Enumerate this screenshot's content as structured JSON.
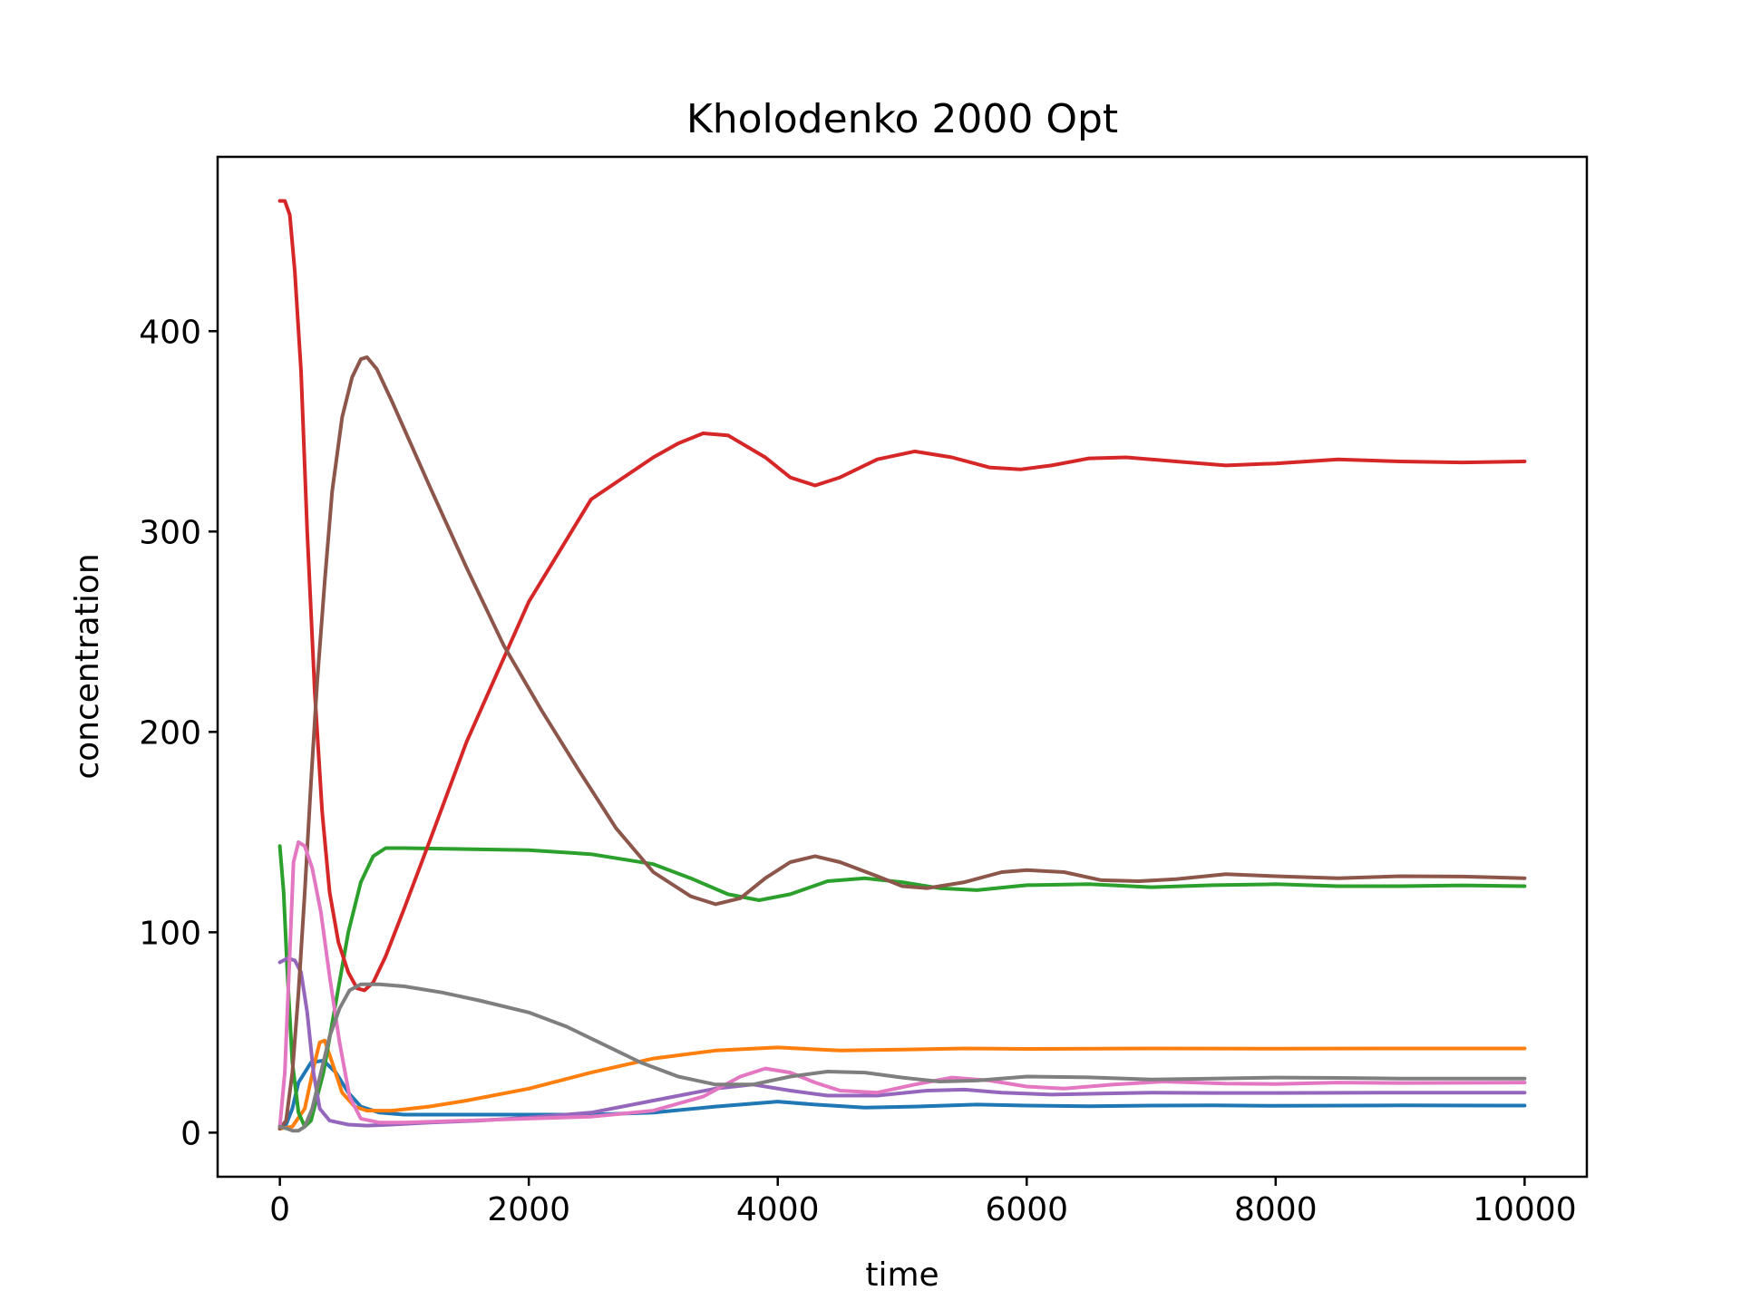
{
  "chart_data": {
    "type": "line",
    "title": "Kholodenko 2000 Opt",
    "xlabel": "time",
    "ylabel": "concentration",
    "xlim": [
      -500,
      10500
    ],
    "ylim": [
      -22,
      487
    ],
    "xticks": [
      0,
      2000,
      4000,
      6000,
      8000,
      10000
    ],
    "yticks": [
      0,
      100,
      200,
      300,
      400
    ],
    "grid": false,
    "legend": "none",
    "series": [
      {
        "color": "#1f77b4",
        "points": [
          [
            0,
            3
          ],
          [
            50,
            4
          ],
          [
            100,
            12
          ],
          [
            150,
            25
          ],
          [
            250,
            35
          ],
          [
            350,
            36
          ],
          [
            450,
            30
          ],
          [
            550,
            20
          ],
          [
            650,
            13
          ],
          [
            800,
            10
          ],
          [
            1000,
            9
          ],
          [
            1500,
            9
          ],
          [
            2000,
            9
          ],
          [
            2500,
            9
          ],
          [
            3000,
            10
          ],
          [
            3500,
            13
          ],
          [
            4000,
            15.5
          ],
          [
            4300,
            14
          ],
          [
            4700,
            12.5
          ],
          [
            5100,
            13
          ],
          [
            5600,
            14
          ],
          [
            6000,
            13.5
          ],
          [
            6500,
            13.2
          ],
          [
            7000,
            13.5
          ],
          [
            7500,
            13.6
          ],
          [
            8000,
            13.4
          ],
          [
            9000,
            13.6
          ],
          [
            10000,
            13.5
          ]
        ]
      },
      {
        "color": "#ff7f0e",
        "points": [
          [
            0,
            2
          ],
          [
            100,
            3
          ],
          [
            200,
            12
          ],
          [
            280,
            35
          ],
          [
            320,
            45
          ],
          [
            360,
            46
          ],
          [
            420,
            35
          ],
          [
            500,
            20
          ],
          [
            600,
            13
          ],
          [
            700,
            11
          ],
          [
            900,
            11
          ],
          [
            1200,
            13
          ],
          [
            1500,
            16
          ],
          [
            2000,
            22
          ],
          [
            2500,
            30
          ],
          [
            3000,
            37
          ],
          [
            3500,
            41
          ],
          [
            4000,
            42.5
          ],
          [
            4500,
            41
          ],
          [
            5000,
            41.5
          ],
          [
            5500,
            42
          ],
          [
            6000,
            41.8
          ],
          [
            7000,
            42
          ],
          [
            8000,
            41.9
          ],
          [
            9000,
            42
          ],
          [
            10000,
            42
          ]
        ]
      },
      {
        "color": "#2ca02c",
        "points": [
          [
            0,
            143
          ],
          [
            30,
            120
          ],
          [
            60,
            80
          ],
          [
            100,
            35
          ],
          [
            150,
            10
          ],
          [
            200,
            3
          ],
          [
            250,
            6
          ],
          [
            350,
            30
          ],
          [
            450,
            65
          ],
          [
            550,
            100
          ],
          [
            650,
            125
          ],
          [
            750,
            138
          ],
          [
            850,
            142
          ],
          [
            1000,
            142
          ],
          [
            1500,
            141.5
          ],
          [
            2000,
            141
          ],
          [
            2500,
            139
          ],
          [
            3000,
            134
          ],
          [
            3300,
            127
          ],
          [
            3600,
            119
          ],
          [
            3850,
            116
          ],
          [
            4100,
            119
          ],
          [
            4400,
            125.5
          ],
          [
            4700,
            127
          ],
          [
            5000,
            125
          ],
          [
            5300,
            122
          ],
          [
            5600,
            121
          ],
          [
            6000,
            123.5
          ],
          [
            6500,
            124
          ],
          [
            7000,
            122.5
          ],
          [
            7500,
            123.5
          ],
          [
            8000,
            124
          ],
          [
            8500,
            123
          ],
          [
            9000,
            123
          ],
          [
            9500,
            123.4
          ],
          [
            10000,
            123
          ]
        ]
      },
      {
        "color": "#d62728",
        "points": [
          [
            0,
            465
          ],
          [
            40,
            465
          ],
          [
            80,
            458
          ],
          [
            120,
            430
          ],
          [
            170,
            380
          ],
          [
            220,
            300
          ],
          [
            280,
            220
          ],
          [
            340,
            160
          ],
          [
            400,
            120
          ],
          [
            470,
            95
          ],
          [
            550,
            80
          ],
          [
            620,
            72
          ],
          [
            680,
            71
          ],
          [
            750,
            75
          ],
          [
            850,
            88
          ],
          [
            1000,
            112
          ],
          [
            1200,
            145
          ],
          [
            1500,
            195
          ],
          [
            2000,
            265
          ],
          [
            2500,
            316
          ],
          [
            3000,
            337
          ],
          [
            3200,
            344
          ],
          [
            3400,
            349
          ],
          [
            3600,
            348
          ],
          [
            3900,
            337
          ],
          [
            4100,
            327
          ],
          [
            4300,
            323
          ],
          [
            4500,
            327
          ],
          [
            4800,
            336
          ],
          [
            5100,
            340
          ],
          [
            5400,
            337
          ],
          [
            5700,
            332
          ],
          [
            5950,
            331
          ],
          [
            6200,
            333
          ],
          [
            6500,
            336.5
          ],
          [
            6800,
            337
          ],
          [
            7200,
            335
          ],
          [
            7600,
            333
          ],
          [
            8000,
            334
          ],
          [
            8500,
            336
          ],
          [
            9000,
            335
          ],
          [
            9500,
            334.5
          ],
          [
            10000,
            335
          ]
        ]
      },
      {
        "color": "#9467bd",
        "points": [
          [
            0,
            85
          ],
          [
            60,
            87
          ],
          [
            120,
            86
          ],
          [
            170,
            80
          ],
          [
            220,
            60
          ],
          [
            270,
            30
          ],
          [
            320,
            12
          ],
          [
            400,
            6
          ],
          [
            550,
            4
          ],
          [
            700,
            3.5
          ],
          [
            900,
            4
          ],
          [
            1200,
            5
          ],
          [
            1600,
            6
          ],
          [
            2000,
            7.5
          ],
          [
            2500,
            10
          ],
          [
            3000,
            16
          ],
          [
            3500,
            22
          ],
          [
            3800,
            24
          ],
          [
            4100,
            21
          ],
          [
            4400,
            18.5
          ],
          [
            4800,
            18.5
          ],
          [
            5200,
            21
          ],
          [
            5500,
            21.5
          ],
          [
            5800,
            20
          ],
          [
            6200,
            19
          ],
          [
            6600,
            19.5
          ],
          [
            7000,
            20
          ],
          [
            7500,
            19.8
          ],
          [
            8000,
            19.8
          ],
          [
            9000,
            20
          ],
          [
            10000,
            20
          ]
        ]
      },
      {
        "color": "#8c564b",
        "points": [
          [
            0,
            2
          ],
          [
            50,
            6
          ],
          [
            100,
            30
          ],
          [
            150,
            70
          ],
          [
            200,
            120
          ],
          [
            250,
            175
          ],
          [
            300,
            225
          ],
          [
            360,
            275
          ],
          [
            420,
            320
          ],
          [
            500,
            357
          ],
          [
            580,
            377
          ],
          [
            650,
            386
          ],
          [
            700,
            387
          ],
          [
            780,
            381
          ],
          [
            900,
            365
          ],
          [
            1200,
            323
          ],
          [
            1500,
            282
          ],
          [
            1800,
            243
          ],
          [
            2100,
            211
          ],
          [
            2400,
            181
          ],
          [
            2700,
            152
          ],
          [
            3000,
            130
          ],
          [
            3300,
            118
          ],
          [
            3500,
            114
          ],
          [
            3700,
            117
          ],
          [
            3900,
            127
          ],
          [
            4100,
            135
          ],
          [
            4300,
            138
          ],
          [
            4500,
            135
          ],
          [
            4800,
            128
          ],
          [
            5000,
            123
          ],
          [
            5200,
            122
          ],
          [
            5500,
            125
          ],
          [
            5800,
            130
          ],
          [
            6000,
            131
          ],
          [
            6300,
            130
          ],
          [
            6600,
            126
          ],
          [
            6900,
            125.5
          ],
          [
            7200,
            126.5
          ],
          [
            7600,
            129
          ],
          [
            8000,
            128
          ],
          [
            8500,
            127
          ],
          [
            9000,
            128
          ],
          [
            9500,
            127.8
          ],
          [
            10000,
            127
          ]
        ]
      },
      {
        "color": "#e377c2",
        "points": [
          [
            0,
            3
          ],
          [
            40,
            30
          ],
          [
            80,
            90
          ],
          [
            110,
            135
          ],
          [
            150,
            145
          ],
          [
            200,
            143
          ],
          [
            260,
            132
          ],
          [
            330,
            110
          ],
          [
            400,
            78
          ],
          [
            480,
            45
          ],
          [
            560,
            18
          ],
          [
            650,
            7
          ],
          [
            800,
            5
          ],
          [
            1000,
            5
          ],
          [
            1500,
            6
          ],
          [
            2000,
            7
          ],
          [
            2500,
            8
          ],
          [
            3000,
            11
          ],
          [
            3400,
            18
          ],
          [
            3700,
            28
          ],
          [
            3900,
            32
          ],
          [
            4100,
            30
          ],
          [
            4300,
            25
          ],
          [
            4500,
            21
          ],
          [
            4800,
            20
          ],
          [
            5100,
            24
          ],
          [
            5400,
            27.5
          ],
          [
            5700,
            26
          ],
          [
            6000,
            23
          ],
          [
            6300,
            22
          ],
          [
            6700,
            24
          ],
          [
            7100,
            25.5
          ],
          [
            7600,
            24.5
          ],
          [
            8000,
            24.3
          ],
          [
            8500,
            25
          ],
          [
            9000,
            24.8
          ],
          [
            10000,
            25
          ]
        ]
      },
      {
        "color": "#7f7f7f",
        "points": [
          [
            0,
            3
          ],
          [
            60,
            2
          ],
          [
            100,
            1
          ],
          [
            150,
            1
          ],
          [
            200,
            3
          ],
          [
            260,
            12
          ],
          [
            330,
            30
          ],
          [
            400,
            48
          ],
          [
            480,
            62
          ],
          [
            560,
            71
          ],
          [
            650,
            74
          ],
          [
            800,
            74
          ],
          [
            1000,
            73
          ],
          [
            1300,
            70
          ],
          [
            1600,
            66
          ],
          [
            2000,
            60
          ],
          [
            2300,
            53
          ],
          [
            2600,
            44
          ],
          [
            2900,
            35
          ],
          [
            3200,
            28
          ],
          [
            3500,
            24
          ],
          [
            3800,
            24
          ],
          [
            4100,
            28
          ],
          [
            4400,
            30.5
          ],
          [
            4700,
            30
          ],
          [
            5000,
            27.5
          ],
          [
            5300,
            25.5
          ],
          [
            5600,
            26
          ],
          [
            6000,
            28
          ],
          [
            6500,
            27.6
          ],
          [
            7000,
            26.5
          ],
          [
            7500,
            27
          ],
          [
            8000,
            27.5
          ],
          [
            8500,
            27.3
          ],
          [
            9000,
            27
          ],
          [
            10000,
            27
          ]
        ]
      }
    ]
  }
}
